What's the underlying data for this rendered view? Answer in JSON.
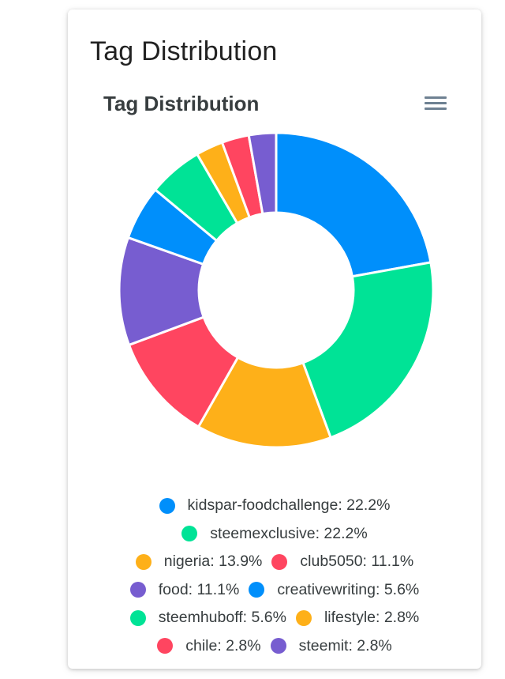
{
  "card": {
    "title": "Tag Distribution"
  },
  "chart_data": {
    "type": "pie",
    "variant": "donut",
    "title": "Tag Distribution",
    "categories": [
      "kidspar-foodchallenge",
      "steemexclusive",
      "nigeria",
      "club5050",
      "food",
      "creativewriting",
      "steemhuboff",
      "lifestyle",
      "chile",
      "steemit"
    ],
    "values": [
      22.2,
      22.2,
      13.9,
      11.1,
      11.1,
      5.6,
      5.6,
      2.8,
      2.8,
      2.8
    ],
    "unit": "%",
    "colors": [
      "#008ffb",
      "#00e396",
      "#feb019",
      "#ff4560",
      "#775dd0",
      "#008ffb",
      "#00e396",
      "#feb019",
      "#ff4560",
      "#775dd0"
    ],
    "legend_position": "bottom",
    "legend_labels": [
      "kidspar-foodchallenge: 22.2%",
      "steemexclusive: 22.2%",
      "nigeria: 13.9%",
      "club5050: 11.1%",
      "food: 11.1%",
      "creativewriting: 5.6%",
      "steemhuboff: 5.6%",
      "lifestyle: 2.8%",
      "chile: 2.8%",
      "steemit: 2.8%"
    ]
  },
  "toolbar": {
    "menu_icon": "hamburger-menu-icon"
  }
}
